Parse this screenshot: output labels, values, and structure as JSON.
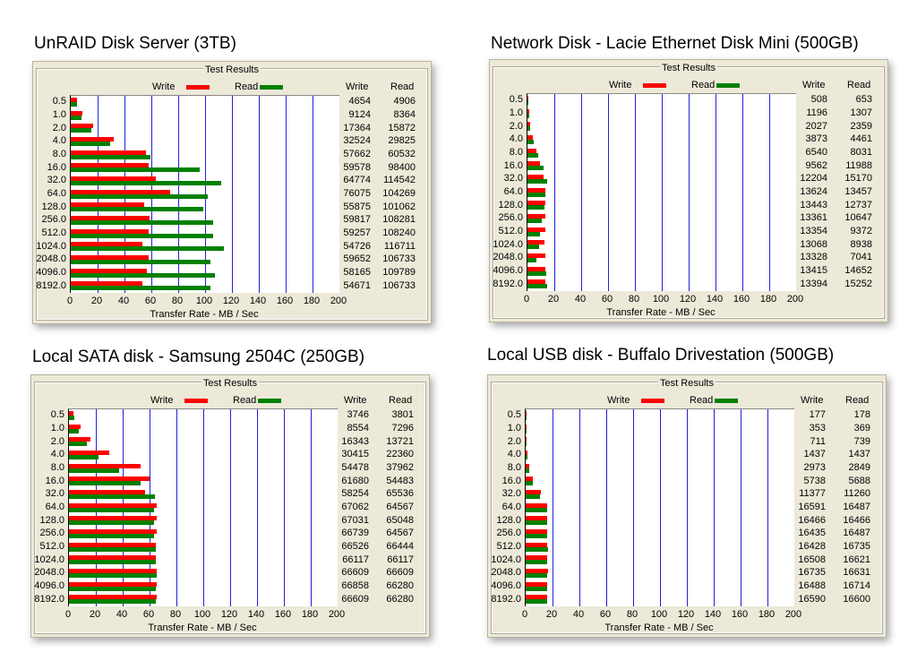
{
  "colors": {
    "write": "#ff0000",
    "read": "#008000",
    "grid": "#2020e0"
  },
  "chart_data": [
    {
      "type": "bar",
      "title": "UnRAID Disk Server (3TB)",
      "group_title": "Test Results",
      "xlabel": "Transfer Rate - MB / Sec",
      "xlim": [
        0,
        200
      ],
      "xticks": [
        "0",
        "20",
        "40",
        "60",
        "80",
        "100",
        "120",
        "140",
        "160",
        "180",
        "200"
      ],
      "categories": [
        "0.5",
        "1.0",
        "2.0",
        "4.0",
        "8.0",
        "16.0",
        "32.0",
        "64.0",
        "128.0",
        "256.0",
        "512.0",
        "1024.0",
        "2048.0",
        "4096.0",
        "8192.0"
      ],
      "series": [
        {
          "name": "Write",
          "values": [
            4654,
            9124,
            17364,
            32524,
            57662,
            59578,
            64774,
            76075,
            55875,
            59817,
            59257,
            54726,
            59652,
            58165,
            54671
          ]
        },
        {
          "name": "Read",
          "values": [
            4906,
            8364,
            15872,
            29825,
            60532,
            98400,
            114542,
            104269,
            101062,
            108281,
            108240,
            116711,
            106733,
            109789,
            106733
          ]
        }
      ]
    },
    {
      "type": "bar",
      "title": "Network Disk - Lacie Ethernet Disk Mini (500GB)",
      "group_title": "Test Results",
      "xlabel": "Transfer Rate - MB / Sec",
      "xlim": [
        0,
        200
      ],
      "xticks": [
        "0",
        "20",
        "40",
        "60",
        "80",
        "100",
        "120",
        "140",
        "160",
        "180",
        "200"
      ],
      "categories": [
        "0.5",
        "1.0",
        "2.0",
        "4.0",
        "8.0",
        "16.0",
        "32.0",
        "64.0",
        "128.0",
        "256.0",
        "512.0",
        "1024.0",
        "2048.0",
        "4096.0",
        "8192.0"
      ],
      "series": [
        {
          "name": "Write",
          "values": [
            508,
            1196,
            2027,
            3873,
            6540,
            9562,
            12204,
            13624,
            13443,
            13361,
            13354,
            13068,
            13328,
            13415,
            13394
          ]
        },
        {
          "name": "Read",
          "values": [
            653,
            1307,
            2359,
            4461,
            8031,
            11988,
            15170,
            13457,
            12737,
            10647,
            9372,
            8938,
            7041,
            14652,
            15252
          ]
        }
      ]
    },
    {
      "type": "bar",
      "title": "Local SATA disk - Samsung 2504C (250GB)",
      "group_title": "Test Results",
      "xlabel": "Transfer Rate - MB / Sec",
      "xlim": [
        0,
        200
      ],
      "xticks": [
        "0",
        "20",
        "40",
        "60",
        "80",
        "100",
        "120",
        "140",
        "160",
        "180",
        "200"
      ],
      "categories": [
        "0.5",
        "1.0",
        "2.0",
        "4.0",
        "8.0",
        "16.0",
        "32.0",
        "64.0",
        "128.0",
        "256.0",
        "512.0",
        "1024.0",
        "2048.0",
        "4096.0",
        "8192.0"
      ],
      "series": [
        {
          "name": "Write",
          "values": [
            3746,
            8554,
            16343,
            30415,
            54478,
            61680,
            58254,
            67062,
            67031,
            66739,
            66526,
            66117,
            66609,
            66858,
            66609
          ]
        },
        {
          "name": "Read",
          "values": [
            3801,
            7296,
            13721,
            22360,
            37962,
            54483,
            65536,
            64567,
            65048,
            64567,
            66444,
            66117,
            66609,
            66280,
            66280
          ]
        }
      ]
    },
    {
      "type": "bar",
      "title": "Local USB disk - Buffalo Drivestation (500GB)",
      "group_title": "Test Results",
      "xlabel": "Transfer Rate - MB / Sec",
      "xlim": [
        0,
        200
      ],
      "xticks": [
        "0",
        "20",
        "40",
        "60",
        "80",
        "100",
        "120",
        "140",
        "160",
        "180",
        "200"
      ],
      "categories": [
        "0.5",
        "1.0",
        "2.0",
        "4.0",
        "8.0",
        "16.0",
        "32.0",
        "64.0",
        "128.0",
        "256.0",
        "512.0",
        "1024.0",
        "2048.0",
        "4096.0",
        "8192.0"
      ],
      "series": [
        {
          "name": "Write",
          "values": [
            177,
            353,
            711,
            1437,
            2973,
            5738,
            11377,
            16591,
            16466,
            16435,
            16428,
            16508,
            16735,
            16488,
            16590
          ]
        },
        {
          "name": "Read",
          "values": [
            178,
            369,
            739,
            1437,
            2849,
            5688,
            11260,
            16487,
            16466,
            16487,
            16735,
            16621,
            16631,
            16714,
            16600
          ]
        }
      ]
    }
  ]
}
